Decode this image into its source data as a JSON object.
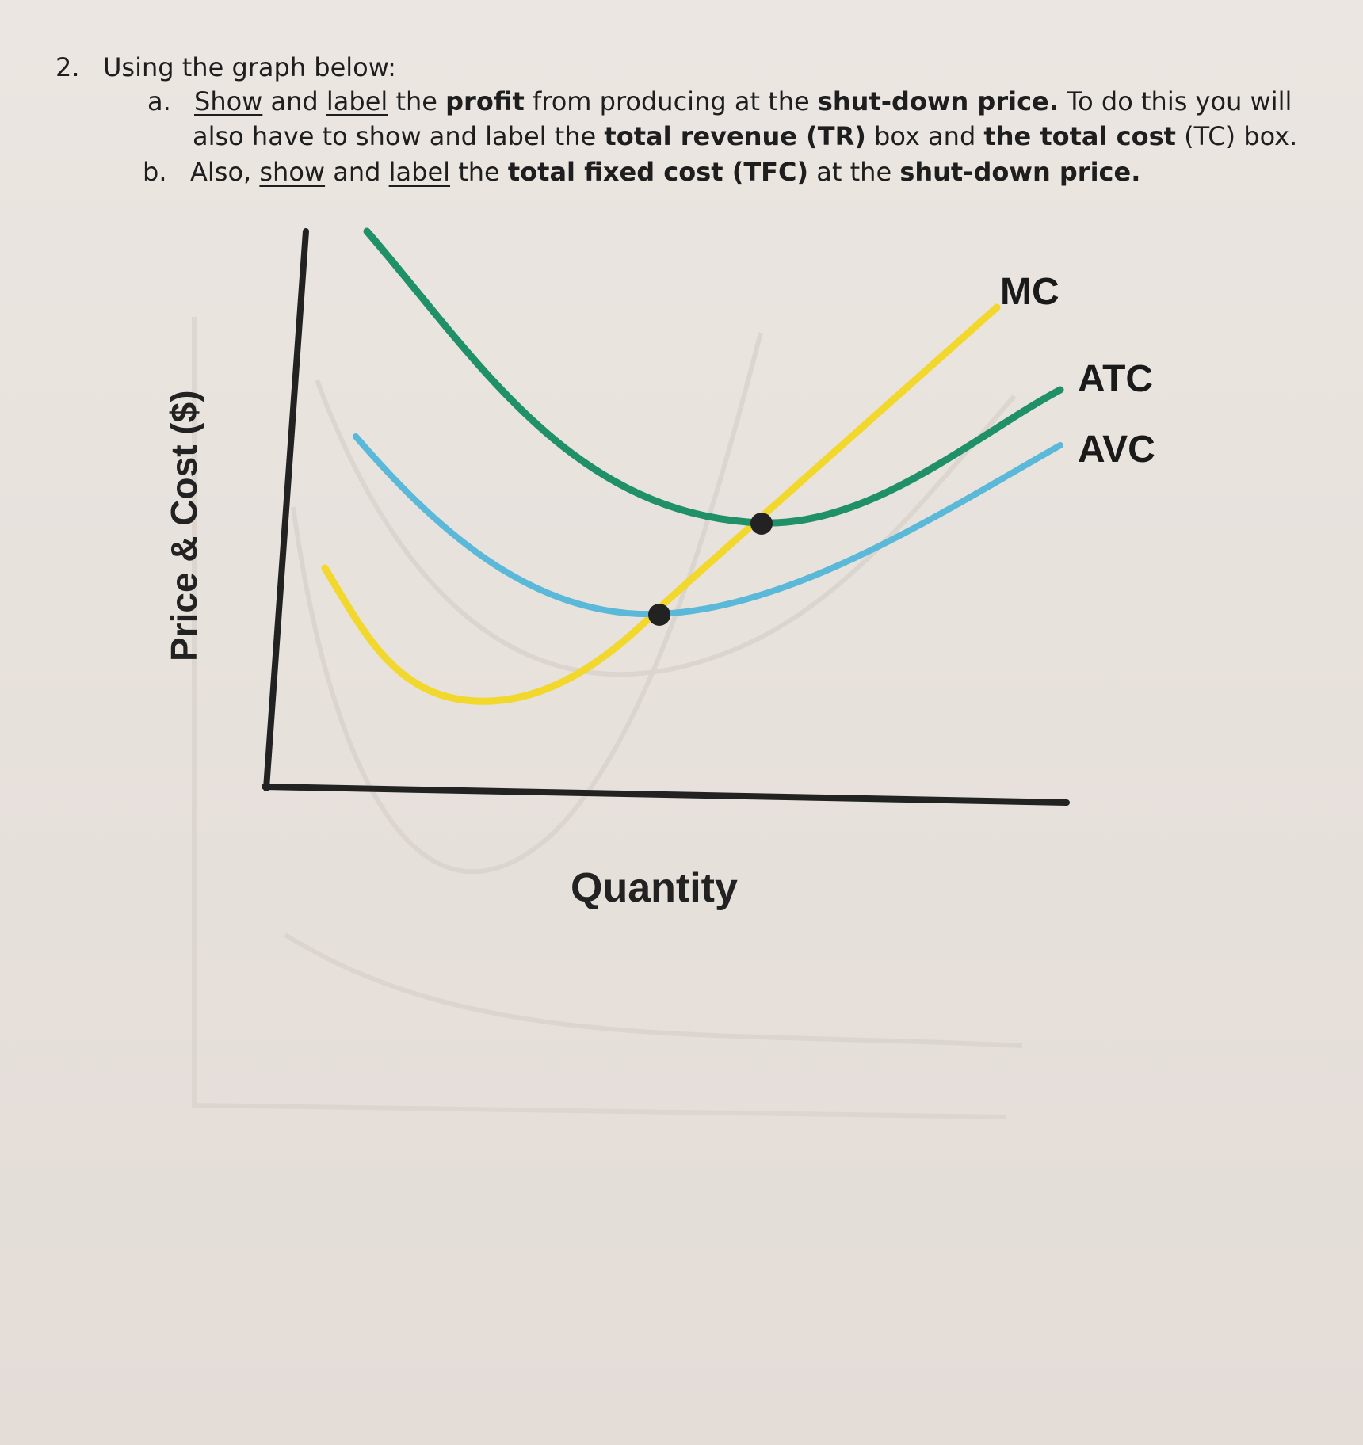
{
  "question": {
    "number": "2.",
    "intro": "Using the graph below:",
    "part_a": {
      "marker": "a.",
      "w1": "Show",
      "t1": " and ",
      "w2": "label",
      "t2": " the ",
      "w3": "profit",
      "t3": " from producing at the ",
      "w4": "shut-down price.",
      "t4": " To do this you will",
      "t5": "also have to show and label the ",
      "w5": "total revenue (TR)",
      "t6": " box and ",
      "w6": "the total cost",
      "t7": " (TC) box."
    },
    "part_b": {
      "marker": "b.",
      "t1": "Also, ",
      "w1": "show",
      "t2": " and ",
      "w2": "label",
      "t3": " the ",
      "w3": "total fixed cost (TFC)",
      "t4": " at the ",
      "w4": "shut-down price."
    }
  },
  "chart_data": {
    "type": "line",
    "title": "",
    "xlabel": "Quantity",
    "ylabel": "Price & Cost ($)",
    "axis_ticks": "none",
    "series": [
      {
        "name": "MC",
        "color": "#f2d72c",
        "shape": "u-shaped, rising steeply"
      },
      {
        "name": "ATC",
        "color": "#1f9068",
        "shape": "u-shaped"
      },
      {
        "name": "AVC",
        "color": "#5ab8d8",
        "shape": "u-shaped"
      }
    ],
    "marked_points": [
      {
        "label": "MC = ATC minimum",
        "color": "#222222"
      },
      {
        "label": "MC = AVC minimum (shut-down point)",
        "color": "#222222"
      }
    ]
  }
}
